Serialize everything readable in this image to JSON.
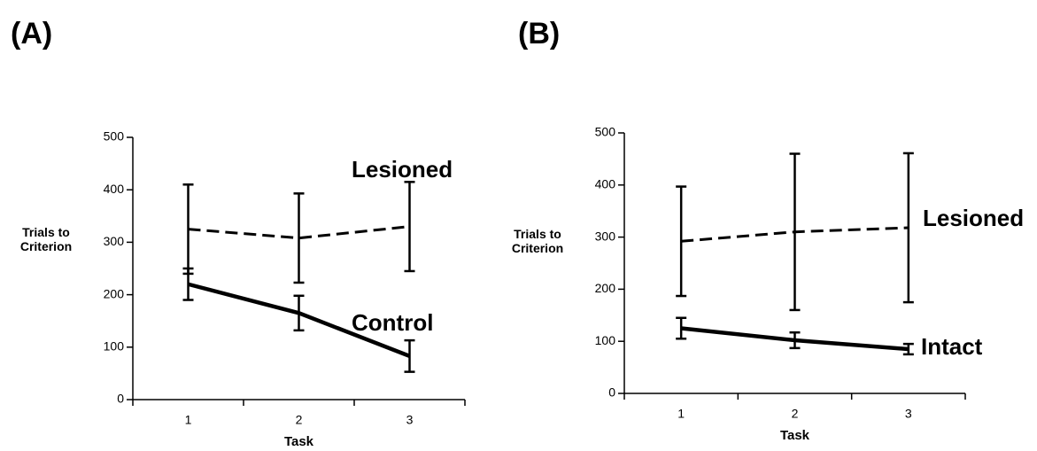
{
  "chart_data": [
    {
      "type": "line",
      "title": "(A)",
      "xlabel": "Task",
      "ylabel": "Trials to Criterion",
      "categories": [
        "1",
        "2",
        "3"
      ],
      "ylim": [
        0,
        500
      ],
      "yticks": [
        0,
        100,
        200,
        300,
        400,
        500
      ],
      "series": [
        {
          "name": "Lesioned",
          "color": "#000000",
          "dashed": true,
          "values": [
            325,
            308,
            330
          ],
          "errors": [
            85,
            85,
            85
          ]
        },
        {
          "name": "Control",
          "color": "#000000",
          "dashed": false,
          "values": [
            220,
            165,
            83
          ],
          "errors": [
            30,
            33,
            30
          ]
        }
      ]
    },
    {
      "type": "line",
      "title": "(B)",
      "xlabel": "Task",
      "ylabel": "Trials to Criterion",
      "categories": [
        "1",
        "2",
        "3"
      ],
      "ylim": [
        0,
        500
      ],
      "yticks": [
        0,
        100,
        200,
        300,
        400,
        500
      ],
      "series": [
        {
          "name": "Lesioned",
          "color": "#000000",
          "dashed": true,
          "values": [
            292,
            310,
            318
          ],
          "errors": [
            105,
            150,
            143
          ]
        },
        {
          "name": "Intact",
          "color": "#000000",
          "dashed": false,
          "values": [
            125,
            102,
            85
          ],
          "errors": [
            20,
            15,
            10
          ]
        }
      ]
    }
  ]
}
